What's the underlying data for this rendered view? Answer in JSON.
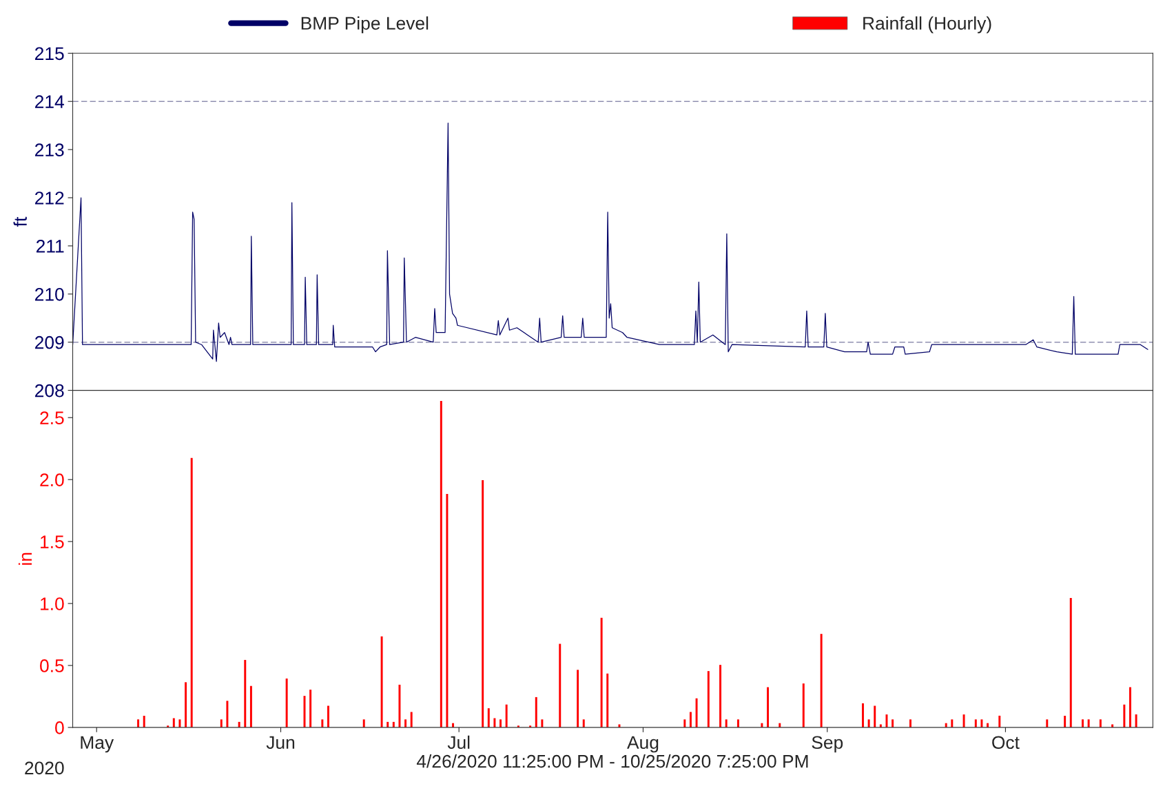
{
  "chart_data": [
    {
      "type": "line",
      "ylabel": "ft",
      "ylim": [
        208,
        215
      ],
      "yticks": [
        208,
        209,
        210,
        211,
        212,
        213,
        214,
        215
      ],
      "xlim": [
        "2020-04-26T23:25",
        "2020-10-25T19:25"
      ],
      "tick_labels": "y",
      "legend": "top",
      "grid": false,
      "ref_lines": [
        {
          "axis": "y",
          "value": 214,
          "color": "#8f8fb0",
          "line_style": "dashed"
        },
        {
          "axis": "y",
          "value": 209,
          "color": "#8f8fb0",
          "line_style": "dashed"
        }
      ],
      "series": [
        {
          "name": "BMP Pipe Level",
          "color": "#000066",
          "x": [
            "2020-04-26T23:25",
            "2020-04-28T09:00",
            "2020-04-28T15:00",
            "2020-05-16T22:00",
            "2020-05-17T04:00",
            "2020-05-17T10:00",
            "2020-05-17T16:00",
            "2020-05-18T16:00",
            "2020-05-20T13:00",
            "2020-05-20T16:00",
            "2020-05-21T04:00",
            "2020-05-21T13:00",
            "2020-05-21T19:00",
            "2020-05-22T13:00",
            "2020-05-23T07:00",
            "2020-05-23T13:00",
            "2020-05-23T19:00",
            "2020-05-26T22:00",
            "2020-05-27T01:00",
            "2020-05-27T07:00",
            "2020-06-02T18:00",
            "2020-06-02T21:00",
            "2020-06-03T03:00",
            "2020-06-05T00:00",
            "2020-06-05T03:00",
            "2020-06-05T09:00",
            "2020-06-07T00:00",
            "2020-06-07T03:00",
            "2020-06-07T09:00",
            "2020-06-09T18:00",
            "2020-06-09T20:00",
            "2020-06-10T02:00",
            "2020-06-16T11:00",
            "2020-06-16T23:00",
            "2020-06-17T17:00",
            "2020-06-18T20:00",
            "2020-06-18T23:00",
            "2020-06-19T08:00",
            "2020-06-21T16:00",
            "2020-06-21T19:00",
            "2020-06-22T04:00",
            "2020-06-23T16:00",
            "2020-06-26T16:00",
            "2020-06-26T22:00",
            "2020-06-27T04:00",
            "2020-06-28T16:00",
            "2020-06-29T04:00",
            "2020-06-29T10:00",
            "2020-06-29T22:00",
            "2020-06-30T12:00",
            "2020-06-30T18:00",
            "2020-07-07T09:00",
            "2020-07-07T15:00",
            "2020-07-07T21:00",
            "2020-07-09T06:00",
            "2020-07-09T12:00",
            "2020-07-10T18:00",
            "2020-07-14T08:00",
            "2020-07-14T14:00",
            "2020-07-14T20:00",
            "2020-07-18T05:00",
            "2020-07-18T11:00",
            "2020-07-18T17:00",
            "2020-07-21T14:00",
            "2020-07-21T20:00",
            "2020-07-22T02:00",
            "2020-07-25T19:00",
            "2020-07-26T01:00",
            "2020-07-26T07:00",
            "2020-07-26T13:00",
            "2020-07-26T19:00",
            "2020-07-28T13:00",
            "2020-07-29T07:00",
            "2020-08-03T18:00",
            "2020-08-09T15:00",
            "2020-08-09T21:00",
            "2020-08-10T03:00",
            "2020-08-10T09:00",
            "2020-08-10T15:00",
            "2020-08-12T18:00",
            "2020-08-14T20:00",
            "2020-08-15T02:00",
            "2020-08-15T08:00",
            "2020-08-15T23:00",
            "2020-08-28T07:00",
            "2020-08-28T13:00",
            "2020-08-28T19:00",
            "2020-08-31T10:00",
            "2020-08-31T16:00",
            "2020-08-31T22:00",
            "2020-09-03T22:00",
            "2020-09-07T15:00",
            "2020-09-07T21:00",
            "2020-09-08T06:00",
            "2020-09-12T00:00",
            "2020-09-12T09:00",
            "2020-09-13T21:00",
            "2020-09-14T03:00",
            "2020-09-18T05:00",
            "2020-09-18T14:00",
            "2020-10-04T10:00",
            "2020-10-05T16:00",
            "2020-10-06T07:00",
            "2020-10-09T15:00",
            "2020-10-12T06:00",
            "2020-10-12T12:00",
            "2020-10-12T18:00",
            "2020-10-19T23:00",
            "2020-10-20T06:00",
            "2020-10-23T17:00",
            "2020-10-24T23:00"
          ],
          "values": [
            208.95,
            212.0,
            208.95,
            208.95,
            211.7,
            211.55,
            209.0,
            208.95,
            208.65,
            209.25,
            208.6,
            209.4,
            209.1,
            209.2,
            208.95,
            209.1,
            208.95,
            208.95,
            211.2,
            208.95,
            208.95,
            211.9,
            208.95,
            208.95,
            210.35,
            208.95,
            208.95,
            210.4,
            208.95,
            208.95,
            209.35,
            208.9,
            208.9,
            208.8,
            208.9,
            208.95,
            210.9,
            208.95,
            209.0,
            210.75,
            209.0,
            209.1,
            209.0,
            209.7,
            209.2,
            209.2,
            213.55,
            210.0,
            209.6,
            209.5,
            209.35,
            209.15,
            209.45,
            209.15,
            209.5,
            209.25,
            209.3,
            209.0,
            209.5,
            209.0,
            209.1,
            209.55,
            209.1,
            209.1,
            209.5,
            209.1,
            209.1,
            211.7,
            209.5,
            209.8,
            209.3,
            209.2,
            209.1,
            208.95,
            208.95,
            209.65,
            209.0,
            210.25,
            209.0,
            209.15,
            208.95,
            211.25,
            208.8,
            208.95,
            208.9,
            209.65,
            208.9,
            208.9,
            209.6,
            208.9,
            208.8,
            208.8,
            209.0,
            208.75,
            208.75,
            208.9,
            208.9,
            208.75,
            208.8,
            208.95,
            208.95,
            209.05,
            208.9,
            208.8,
            208.75,
            209.95,
            208.75,
            208.75,
            208.95,
            208.95,
            208.85
          ]
        }
      ]
    },
    {
      "type": "bar",
      "ylabel": "in",
      "xlabel": "4/26/2020 11:25:00 PM - 10/25/2020 7:25:00 PM",
      "ylim": [
        0,
        2.72
      ],
      "yticks": [
        0,
        0.5,
        {
          "value": 1,
          "label": "1.0"
        },
        1.5,
        {
          "value": 2,
          "label": "2.0"
        },
        2.5
      ],
      "xlim": [
        "2020-04-26T23:25",
        "2020-10-25T19:25"
      ],
      "xticks": [
        {
          "value": "2020-05-01",
          "label": "May"
        },
        {
          "value": "2020-06-01",
          "label": "Jun"
        },
        {
          "value": "2020-07-01",
          "label": "Jul"
        },
        {
          "value": "2020-08-01",
          "label": "Aug"
        },
        {
          "value": "2020-09-01",
          "label": "Sep"
        },
        {
          "value": "2020-10-01",
          "label": "Oct"
        }
      ],
      "legend": "top",
      "grid": false,
      "annotations": [
        "2020"
      ],
      "series": [
        {
          "name": "Rainfall (Hourly)",
          "color": "#ff0000",
          "x": [
            "2020-05-08",
            "2020-05-09",
            "2020-05-13",
            "2020-05-14",
            "2020-05-15",
            "2020-05-16",
            "2020-05-17",
            "2020-05-22",
            "2020-05-23",
            "2020-05-25",
            "2020-05-26",
            "2020-05-27",
            "2020-06-02",
            "2020-06-05",
            "2020-06-06",
            "2020-06-08",
            "2020-06-09",
            "2020-06-15",
            "2020-06-18",
            "2020-06-19",
            "2020-06-20",
            "2020-06-21",
            "2020-06-22",
            "2020-06-23",
            "2020-06-28",
            "2020-06-29",
            "2020-06-30",
            "2020-07-05",
            "2020-07-06",
            "2020-07-07",
            "2020-07-08",
            "2020-07-09",
            "2020-07-11",
            "2020-07-13",
            "2020-07-14",
            "2020-07-15",
            "2020-07-18",
            "2020-07-21",
            "2020-07-22",
            "2020-07-25",
            "2020-07-26",
            "2020-07-28",
            "2020-08-08",
            "2020-08-09",
            "2020-08-10",
            "2020-08-12",
            "2020-08-14",
            "2020-08-15",
            "2020-08-17",
            "2020-08-21",
            "2020-08-22",
            "2020-08-24",
            "2020-08-28",
            "2020-08-31",
            "2020-09-07",
            "2020-09-08",
            "2020-09-09",
            "2020-09-10",
            "2020-09-11",
            "2020-09-12",
            "2020-09-15",
            "2020-09-21",
            "2020-09-22",
            "2020-09-24",
            "2020-09-26",
            "2020-09-27",
            "2020-09-28",
            "2020-09-30",
            "2020-10-08",
            "2020-10-11",
            "2020-10-12",
            "2020-10-14",
            "2020-10-15",
            "2020-10-17",
            "2020-10-19",
            "2020-10-21",
            "2020-10-22",
            "2020-10-23"
          ],
          "values": [
            0.06,
            0.09,
            0.01,
            0.07,
            0.06,
            0.36,
            2.17,
            0.06,
            0.21,
            0.04,
            0.54,
            0.33,
            0.39,
            0.25,
            0.3,
            0.06,
            0.17,
            0.06,
            0.73,
            0.04,
            0.04,
            0.34,
            0.06,
            0.12,
            2.63,
            1.88,
            0.03,
            1.99,
            0.15,
            0.07,
            0.06,
            0.18,
            0.01,
            0.01,
            0.24,
            0.06,
            0.67,
            0.46,
            0.06,
            0.88,
            0.43,
            0.02,
            0.06,
            0.12,
            0.23,
            0.45,
            0.5,
            0.06,
            0.06,
            0.03,
            0.32,
            0.03,
            0.35,
            0.75,
            0.19,
            0.06,
            0.17,
            0.02,
            0.1,
            0.06,
            0.06,
            0.03,
            0.06,
            0.1,
            0.06,
            0.06,
            0.03,
            0.09,
            0.06,
            0.09,
            1.04,
            0.06,
            0.06,
            0.06,
            0.02,
            0.18,
            0.32,
            0.1
          ]
        }
      ]
    }
  ]
}
